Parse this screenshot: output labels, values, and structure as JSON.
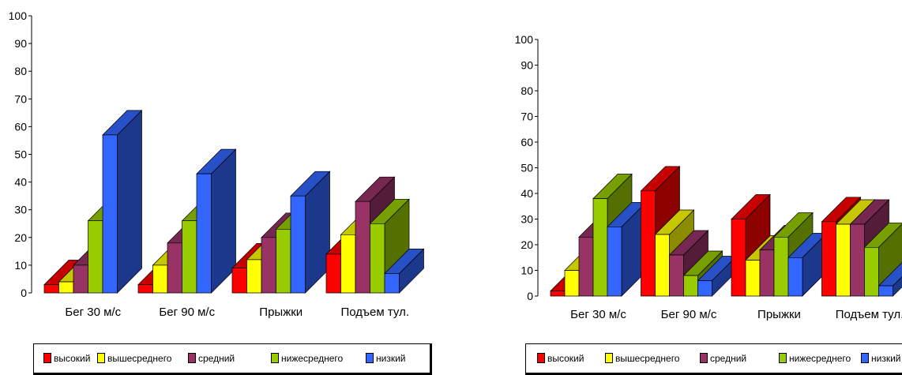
{
  "chart_data": [
    {
      "type": "bar",
      "categories": [
        "Бег 30 м/с",
        "Бег 90 м/с",
        "Прыжки",
        "Подъем тул."
      ],
      "series": [
        {
          "name": "высокий",
          "values": [
            3,
            3,
            9,
            14
          ]
        },
        {
          "name": "вышесреднего",
          "values": [
            4,
            10,
            12,
            21
          ]
        },
        {
          "name": "средний",
          "values": [
            10,
            18,
            20,
            33
          ]
        },
        {
          "name": "нижесреднего",
          "values": [
            26,
            26,
            23,
            25
          ]
        },
        {
          "name": "низкий",
          "values": [
            57,
            43,
            35,
            7
          ]
        }
      ],
      "yticks": [
        "0",
        "10",
        "20",
        "30",
        "40",
        "50",
        "60",
        "70",
        "80",
        "90",
        "100"
      ],
      "ylim": [
        0,
        100
      ],
      "legend_position": "bottom"
    },
    {
      "type": "bar",
      "categories": [
        "Бег 30 м/с",
        "Бег 90 м/с",
        "Прыжки",
        "Подъем тул."
      ],
      "series": [
        {
          "name": "высокий",
          "values": [
            2,
            41,
            30,
            29
          ]
        },
        {
          "name": "вышесреднего",
          "values": [
            10,
            24,
            14,
            28
          ]
        },
        {
          "name": "средний",
          "values": [
            23,
            16,
            18,
            28
          ]
        },
        {
          "name": "нижесреднего",
          "values": [
            38,
            8,
            23,
            19
          ]
        },
        {
          "name": "низкий",
          "values": [
            27,
            6,
            15,
            4
          ]
        }
      ],
      "yticks": [
        "0",
        "10",
        "20",
        "30",
        "40",
        "50",
        "60",
        "70",
        "80",
        "90",
        "100"
      ],
      "ylim": [
        0,
        100
      ],
      "legend_position": "bottom"
    }
  ],
  "colors": {
    "высокий": "#ff0000",
    "вышесреднего": "#ffff00",
    "средний": "#993366",
    "нижесреднего": "#99cc00",
    "низкий": "#3366ff"
  }
}
